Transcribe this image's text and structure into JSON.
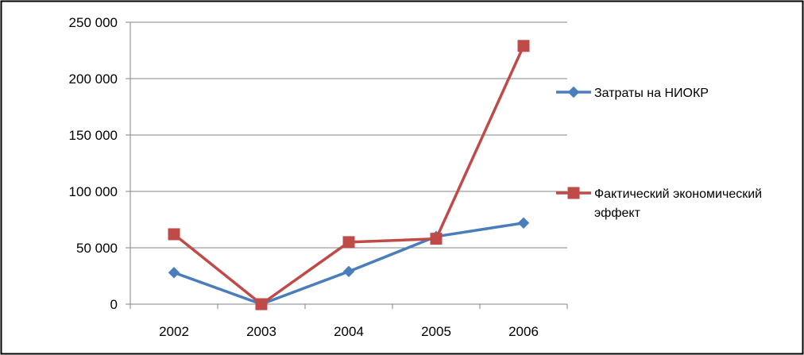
{
  "chart_data": {
    "type": "line",
    "title": "",
    "xlabel": "",
    "ylabel": "",
    "categories": [
      "2002",
      "2003",
      "2004",
      "2005",
      "2006"
    ],
    "ylim": [
      0,
      250000
    ],
    "yticks": [
      0,
      50000,
      100000,
      150000,
      200000,
      250000
    ],
    "ytick_labels": [
      "0",
      "50 000",
      "100 000",
      "150 000",
      "200 000",
      "250 000"
    ],
    "grid": true,
    "legend_position": "right",
    "series": [
      {
        "name": "Затраты на НИОКР",
        "values": [
          28000,
          0,
          29000,
          60000,
          72000
        ],
        "color": "#4a7ebb",
        "marker": "diamond",
        "legend_lines": [
          "Затраты на НИОКР"
        ]
      },
      {
        "name": "Фактический экономический эффект",
        "values": [
          62000,
          0,
          55000,
          58000,
          229000
        ],
        "color": "#be4b48",
        "marker": "square",
        "legend_lines": [
          "Фактический экономический",
          "эффект"
        ]
      }
    ]
  }
}
